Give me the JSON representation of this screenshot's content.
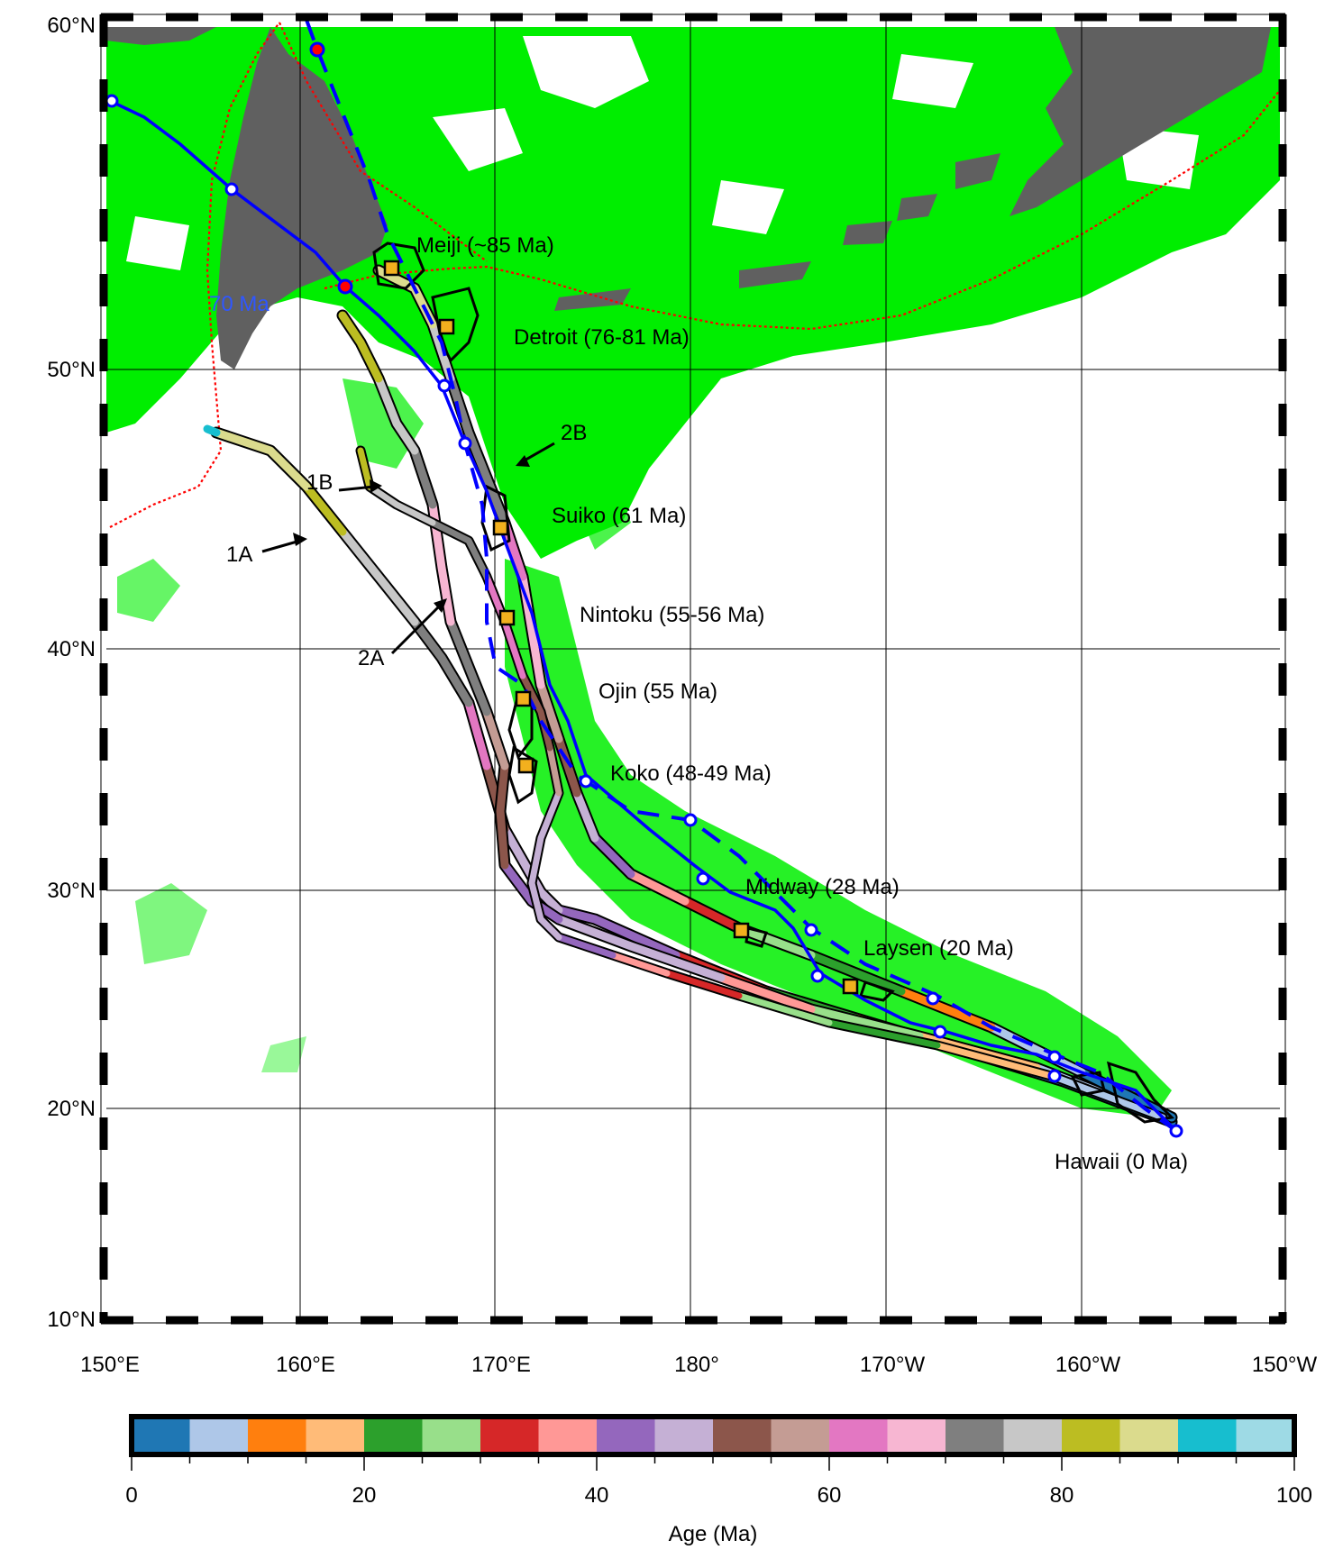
{
  "map": {
    "lat_ticks": [
      "60°N",
      "50°N",
      "40°N",
      "30°N",
      "20°N",
      "10°N"
    ],
    "lon_ticks": [
      "150°E",
      "160°E",
      "170°E",
      "180°",
      "170°W",
      "160°W",
      "150°W"
    ],
    "track_age_label": "70 Ma",
    "seamounts": [
      {
        "name": "Meiji (~85 Ma)"
      },
      {
        "name": "Detroit (76-81 Ma)"
      },
      {
        "name": "Suiko (61 Ma)"
      },
      {
        "name": "Nintoku (55-56 Ma)"
      },
      {
        "name": "Ojin (55 Ma)"
      },
      {
        "name": "Koko (48-49 Ma)"
      },
      {
        "name": "Midway (28 Ma)"
      },
      {
        "name": "Laysen (20 Ma)"
      },
      {
        "name": "Hawaii (0 Ma)"
      }
    ],
    "track_labels": [
      "1A",
      "1B",
      "2A",
      "2B"
    ],
    "colors": {
      "ocean_anomaly_green": "#00ff00",
      "land": "#606060",
      "plate_boundary": "#ff0000",
      "hotspot_track": "#0000ff"
    }
  },
  "colorbar": {
    "title": "Age (Ma)",
    "tick_labels": [
      "0",
      "20",
      "40",
      "60",
      "80",
      "100"
    ],
    "range": [
      0,
      100
    ],
    "step": 5,
    "colors": [
      "#1f77b4",
      "#aec7e8",
      "#ff7f0e",
      "#ffbb78",
      "#2ca02c",
      "#98df8a",
      "#d62728",
      "#ff9896",
      "#9467bd",
      "#c5b0d5",
      "#8c564b",
      "#c49c94",
      "#e377c2",
      "#f7b6d2",
      "#7f7f7f",
      "#c7c7c7",
      "#bcbd22",
      "#dbdb8d",
      "#17becf",
      "#9edae5"
    ]
  }
}
